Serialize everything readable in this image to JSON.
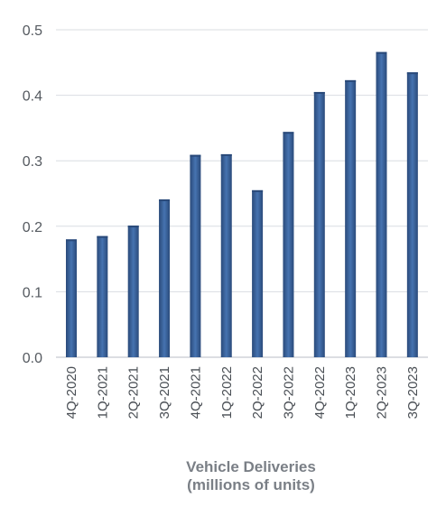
{
  "chart_data": {
    "type": "bar",
    "categories": [
      "4Q-2020",
      "1Q-2021",
      "2Q-2021",
      "3Q-2021",
      "4Q-2021",
      "1Q-2022",
      "2Q-2022",
      "3Q-2022",
      "4Q-2022",
      "1Q-2023",
      "2Q-2023",
      "3Q-2023"
    ],
    "values": [
      0.18,
      0.185,
      0.201,
      0.241,
      0.309,
      0.31,
      0.255,
      0.344,
      0.405,
      0.423,
      0.466,
      0.435
    ],
    "title": "",
    "xlabel_line1": "Vehicle Deliveries",
    "xlabel_line2": "(millions of units)",
    "ylabel": "",
    "ylim": [
      0,
      0.5
    ],
    "yticks": [
      "0.0",
      "0.1",
      "0.2",
      "0.3",
      "0.4",
      "0.5"
    ],
    "grid": true,
    "legend": "none",
    "colors": {
      "bar_dark": "#2a4a7a",
      "bar_light": "#4673b0",
      "grid": "#d9dde2",
      "axis": "#b8bdc4"
    }
  }
}
